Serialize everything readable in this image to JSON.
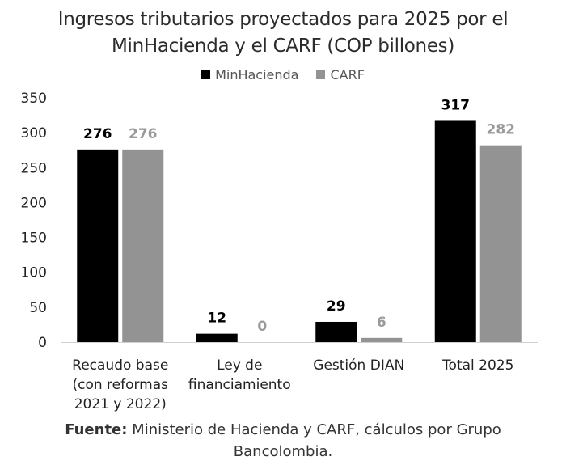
{
  "chart_data": {
    "type": "bar",
    "title_line1": "Ingresos tributarios proyectados para 2025 por el",
    "title_line2": "MinHacienda y el CARF (COP billones)",
    "categories": [
      [
        "Recaudo base",
        "(con reformas",
        "2021 y 2022)"
      ],
      [
        "Ley de",
        "financiamiento"
      ],
      [
        "Gestión DIAN"
      ],
      [
        "Total 2025"
      ]
    ],
    "series": [
      {
        "name": "MinHacienda",
        "color": "#000000",
        "label_color": "#000000",
        "values": [
          276,
          12,
          29,
          317
        ]
      },
      {
        "name": "CARF",
        "color": "#939393",
        "label_color": "#9a9a9a",
        "values": [
          276,
          0,
          6,
          282
        ]
      }
    ],
    "ylim": [
      0,
      350
    ],
    "yticks": [
      0,
      50,
      100,
      150,
      200,
      250,
      300,
      350
    ],
    "grid": false,
    "legend_position": "top"
  },
  "footer": {
    "source_label": "Fuente:",
    "source_text_line1": " Ministerio de Hacienda y CARF, cálculos por Grupo",
    "source_text_line2": "Bancolombia."
  }
}
